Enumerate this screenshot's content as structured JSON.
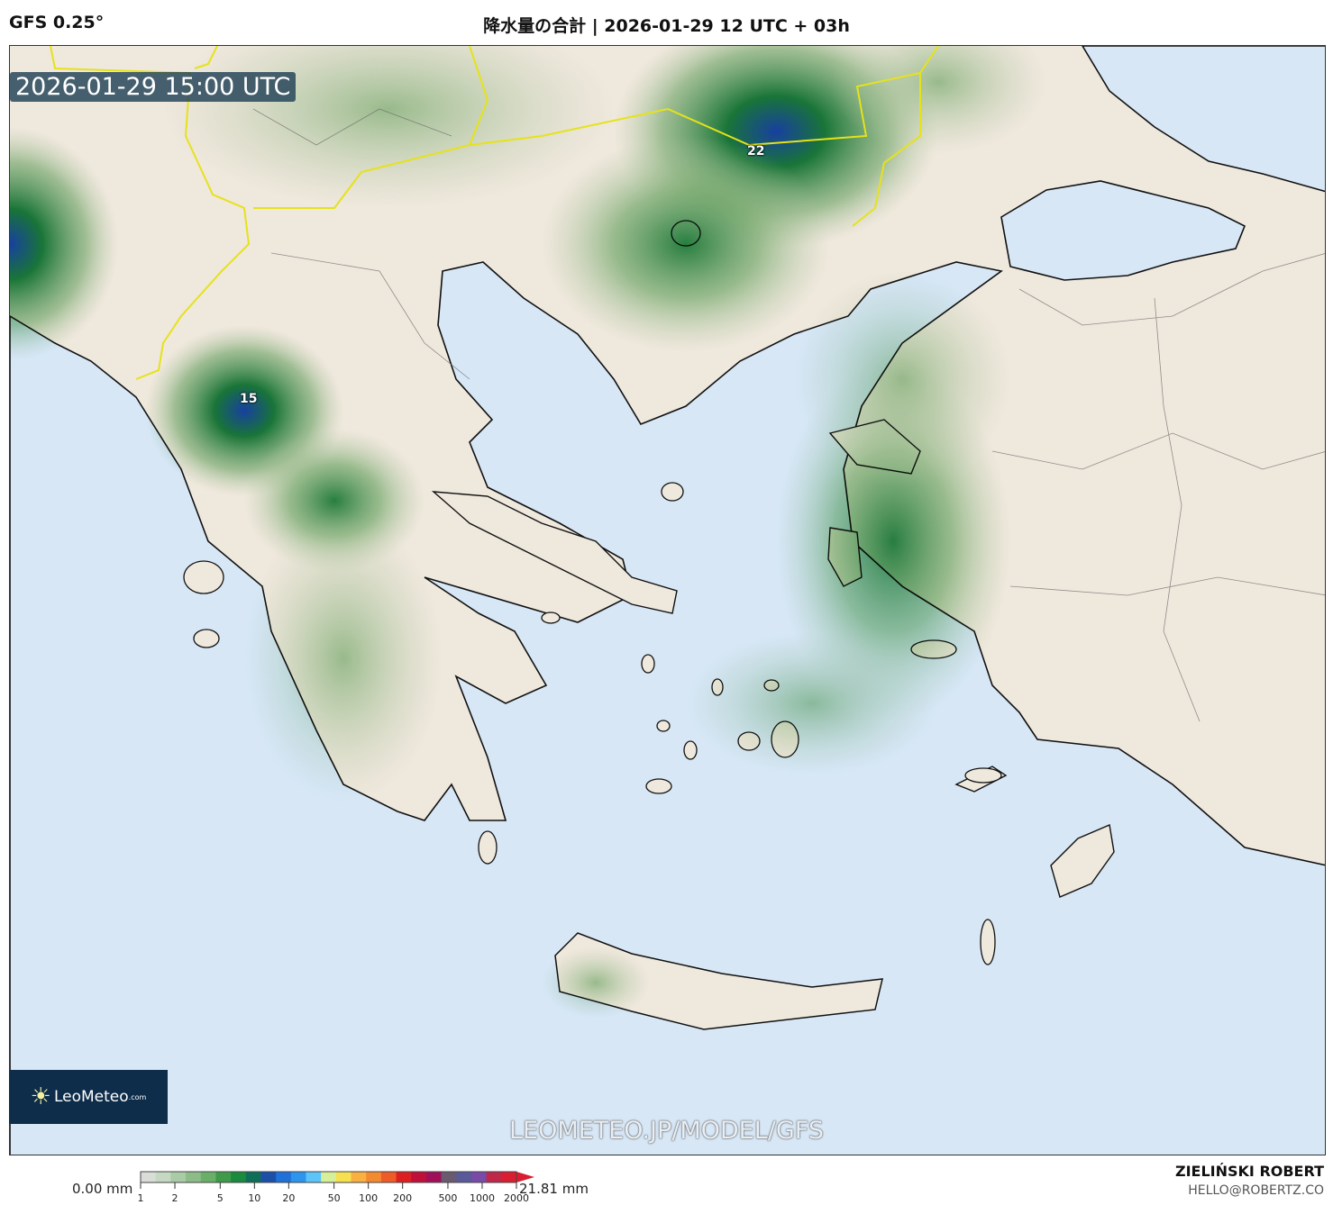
{
  "header": {
    "model": "GFS 0.25°",
    "title": "降水量の合計 | 2026-01-29 12 UTC + 03h"
  },
  "map": {
    "timestamp": "2026-01-29 15:00 UTC",
    "value_labels": [
      "22",
      "15"
    ],
    "watermark": "LEOMETEO.JP/MODEL/GFS",
    "logo": {
      "text": "LeoMeteo",
      "suffix": ".com"
    },
    "colors": {
      "sea": "#d7e7f6",
      "land": "#efe8dd",
      "border": "#e6e21a"
    }
  },
  "colorbar": {
    "min_label": "0.00 mm",
    "max_label": "21.81 mm",
    "ticks": [
      "1",
      "2",
      "5",
      "10",
      "20",
      "50",
      "100",
      "200",
      "500",
      "1000",
      "2000"
    ],
    "colors": [
      "#d9ddd8",
      "#c4d8c2",
      "#a9cba6",
      "#8cbd88",
      "#6aaf68",
      "#3f9a4a",
      "#1a8a3e",
      "#0f6e58",
      "#1c4fa8",
      "#1f70d8",
      "#2d95ee",
      "#5cc4f8",
      "#d8ef9a",
      "#f6e050",
      "#f8b040",
      "#f48a30",
      "#ee5a28",
      "#dc2020",
      "#c0103a",
      "#a01058",
      "#6a5a70",
      "#5a5a9a",
      "#7a4aa8",
      "#c0284a",
      "#d81e30"
    ]
  },
  "credit": {
    "name": "ZIELIŃSKI ROBERT",
    "email": "HELLO@ROBERTZ.CO"
  }
}
